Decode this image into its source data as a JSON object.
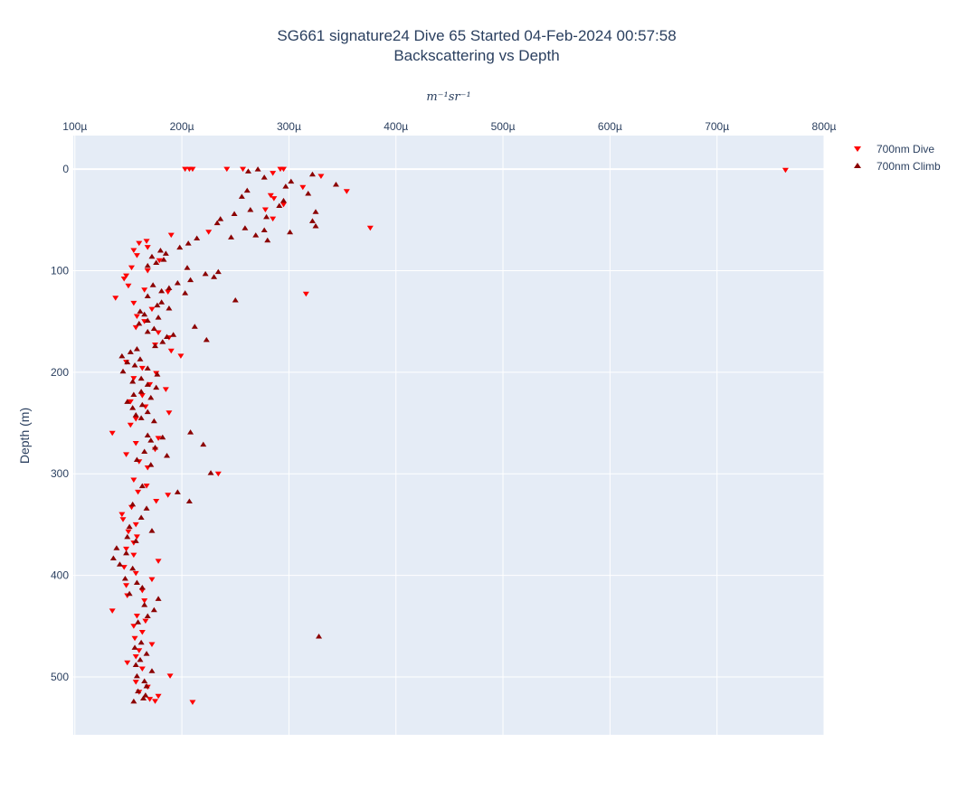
{
  "chart_data": {
    "type": "scatter",
    "title": "SG661 signature24 Dive 65 Started 04-Feb-2024 00:57:58",
    "subtitle": "Backscattering vs Depth",
    "xlabel": "m⁻¹sr⁻¹",
    "ylabel": "Depth (m)",
    "x_axis_position": "top",
    "y_reversed": true,
    "xlim": [
      9.85e-05,
      0.0008
    ],
    "ylim": [
      557,
      -33
    ],
    "x_ticks": [
      0.0001,
      0.0002,
      0.0003,
      0.0004,
      0.0005,
      0.0006,
      0.0007,
      0.0008
    ],
    "x_tick_labels": [
      "100µ",
      "200µ",
      "300µ",
      "400µ",
      "500µ",
      "600µ",
      "700µ",
      "800µ"
    ],
    "y_ticks": [
      0,
      100,
      200,
      300,
      400,
      500
    ],
    "y_tick_labels": [
      "0",
      "100",
      "200",
      "300",
      "400",
      "500"
    ],
    "grid": true,
    "legend_position": "top-right",
    "series": [
      {
        "name": "700nm Dive",
        "marker": "triangle-down",
        "color": "#ff0000",
        "points": [
          [
            0.000203,
            0
          ],
          [
            0.000207,
            0
          ],
          [
            0.00021,
            0
          ],
          [
            0.000242,
            0
          ],
          [
            0.000257,
            0
          ],
          [
            0.000292,
            0
          ],
          [
            0.000295,
            0
          ],
          [
            0.000764,
            1
          ],
          [
            0.000285,
            4
          ],
          [
            0.00033,
            7
          ],
          [
            0.000313,
            18
          ],
          [
            0.000354,
            22
          ],
          [
            0.000283,
            26
          ],
          [
            0.000286,
            29
          ],
          [
            0.000295,
            35
          ],
          [
            0.000278,
            40
          ],
          [
            0.000285,
            49
          ],
          [
            0.000376,
            58
          ],
          [
            0.000225,
            62
          ],
          [
            0.00019,
            65
          ],
          [
            0.000167,
            71
          ],
          [
            0.00016,
            73
          ],
          [
            0.000168,
            77
          ],
          [
            0.000155,
            80
          ],
          [
            0.000158,
            85
          ],
          [
            0.000179,
            90
          ],
          [
            0.000153,
            97
          ],
          [
            0.000168,
            100
          ],
          [
            0.000148,
            105
          ],
          [
            0.000146,
            108
          ],
          [
            0.00015,
            115
          ],
          [
            0.000165,
            119
          ],
          [
            0.000187,
            121
          ],
          [
            0.000316,
            123
          ],
          [
            0.000138,
            127
          ],
          [
            0.000155,
            132
          ],
          [
            0.000172,
            138
          ],
          [
            0.000158,
            145
          ],
          [
            0.000165,
            150
          ],
          [
            0.000157,
            156
          ],
          [
            0.000178,
            161
          ],
          [
            0.000188,
            166
          ],
          [
            0.000175,
            173
          ],
          [
            0.00019,
            179
          ],
          [
            0.000199,
            184
          ],
          [
            0.000148,
            190
          ],
          [
            0.000163,
            196
          ],
          [
            0.000176,
            201
          ],
          [
            0.000155,
            206
          ],
          [
            0.00017,
            212
          ],
          [
            0.000185,
            217
          ],
          [
            0.000163,
            223
          ],
          [
            0.000152,
            229
          ],
          [
            0.000166,
            234
          ],
          [
            0.000188,
            240
          ],
          [
            0.000157,
            246
          ],
          [
            0.000152,
            252
          ],
          [
            0.000135,
            260
          ],
          [
            0.000178,
            265
          ],
          [
            0.000157,
            270
          ],
          [
            0.000175,
            276
          ],
          [
            0.000148,
            281
          ],
          [
            0.00016,
            288
          ],
          [
            0.000168,
            294
          ],
          [
            0.000234,
            300
          ],
          [
            0.000155,
            306
          ],
          [
            0.000167,
            312
          ],
          [
            0.000159,
            318
          ],
          [
            0.000187,
            321
          ],
          [
            0.000176,
            327
          ],
          [
            0.000153,
            333
          ],
          [
            0.000144,
            340
          ],
          [
            0.000145,
            345
          ],
          [
            0.000157,
            350
          ],
          [
            0.00015,
            357
          ],
          [
            0.000158,
            362
          ],
          [
            0.000155,
            368
          ],
          [
            0.000148,
            374
          ],
          [
            0.000155,
            380
          ],
          [
            0.000178,
            386
          ],
          [
            0.000146,
            392
          ],
          [
            0.000157,
            398
          ],
          [
            0.000172,
            404
          ],
          [
            0.000148,
            410
          ],
          [
            0.000163,
            415
          ],
          [
            0.000149,
            420
          ],
          [
            0.000165,
            425
          ],
          [
            0.000135,
            435
          ],
          [
            0.000158,
            440
          ],
          [
            0.000166,
            445
          ],
          [
            0.000155,
            450
          ],
          [
            0.000163,
            456
          ],
          [
            0.000156,
            462
          ],
          [
            0.000172,
            468
          ],
          [
            0.00016,
            474
          ],
          [
            0.000157,
            480
          ],
          [
            0.000149,
            486
          ],
          [
            0.000163,
            492
          ],
          [
            0.000189,
            499
          ],
          [
            0.000157,
            505
          ],
          [
            0.000168,
            510
          ],
          [
            0.00016,
            515
          ],
          [
            0.000178,
            519
          ],
          [
            0.00017,
            522
          ],
          [
            0.000175,
            524
          ],
          [
            0.00021,
            525
          ]
        ]
      },
      {
        "name": "700nm Climb",
        "marker": "triangle-up",
        "color": "#8b0000",
        "points": [
          [
            0.000271,
            0
          ],
          [
            0.000262,
            2
          ],
          [
            0.000322,
            5
          ],
          [
            0.000277,
            8
          ],
          [
            0.000302,
            12
          ],
          [
            0.000344,
            15
          ],
          [
            0.000297,
            17
          ],
          [
            0.000261,
            21
          ],
          [
            0.000318,
            24
          ],
          [
            0.000256,
            27
          ],
          [
            0.000295,
            31
          ],
          [
            0.000291,
            36
          ],
          [
            0.000264,
            40
          ],
          [
            0.000325,
            42
          ],
          [
            0.000249,
            44
          ],
          [
            0.000279,
            47
          ],
          [
            0.000236,
            49
          ],
          [
            0.000322,
            51
          ],
          [
            0.000233,
            53
          ],
          [
            0.000325,
            56
          ],
          [
            0.000259,
            58
          ],
          [
            0.000277,
            60
          ],
          [
            0.000301,
            62
          ],
          [
            0.000269,
            65
          ],
          [
            0.000246,
            67
          ],
          [
            0.000214,
            68
          ],
          [
            0.00028,
            70
          ],
          [
            0.000206,
            73
          ],
          [
            0.000198,
            77
          ],
          [
            0.00018,
            80
          ],
          [
            0.000185,
            83
          ],
          [
            0.000172,
            86
          ],
          [
            0.000183,
            89
          ],
          [
            0.000176,
            92
          ],
          [
            0.000168,
            95
          ],
          [
            0.000205,
            97
          ],
          [
            0.000234,
            101
          ],
          [
            0.000222,
            103
          ],
          [
            0.00023,
            106
          ],
          [
            0.000208,
            109
          ],
          [
            0.000196,
            112
          ],
          [
            0.000173,
            114
          ],
          [
            0.000188,
            117
          ],
          [
            0.000181,
            120
          ],
          [
            0.000203,
            122
          ],
          [
            0.000168,
            125
          ],
          [
            0.00025,
            129
          ],
          [
            0.000181,
            131
          ],
          [
            0.000177,
            134
          ],
          [
            0.000188,
            137
          ],
          [
            0.000161,
            140
          ],
          [
            0.000165,
            143
          ],
          [
            0.000178,
            146
          ],
          [
            0.000168,
            149
          ],
          [
            0.00016,
            152
          ],
          [
            0.000212,
            155
          ],
          [
            0.000174,
            157
          ],
          [
            0.000168,
            160
          ],
          [
            0.000192,
            163
          ],
          [
            0.000186,
            165
          ],
          [
            0.000223,
            168
          ],
          [
            0.000182,
            170
          ],
          [
            0.000175,
            174
          ],
          [
            0.000158,
            177
          ],
          [
            0.000152,
            180
          ],
          [
            0.000144,
            184
          ],
          [
            0.000161,
            187
          ],
          [
            0.000149,
            190
          ],
          [
            0.000156,
            193
          ],
          [
            0.000168,
            196
          ],
          [
            0.000145,
            199
          ],
          [
            0.000177,
            202
          ],
          [
            0.000162,
            206
          ],
          [
            0.000154,
            209
          ],
          [
            0.000168,
            212
          ],
          [
            0.000176,
            215
          ],
          [
            0.000162,
            219
          ],
          [
            0.000155,
            222
          ],
          [
            0.000171,
            225
          ],
          [
            0.000149,
            229
          ],
          [
            0.000163,
            232
          ],
          [
            0.000154,
            235
          ],
          [
            0.000168,
            239
          ],
          [
            0.000157,
            242
          ],
          [
            0.000162,
            245
          ],
          [
            0.000174,
            248
          ],
          [
            0.000208,
            259
          ],
          [
            0.000168,
            262
          ],
          [
            0.000182,
            264
          ],
          [
            0.000171,
            267
          ],
          [
            0.00022,
            271
          ],
          [
            0.000175,
            274
          ],
          [
            0.000165,
            278
          ],
          [
            0.000186,
            282
          ],
          [
            0.000158,
            286
          ],
          [
            0.000171,
            291
          ],
          [
            0.000227,
            299
          ],
          [
            0.000196,
            318
          ],
          [
            0.000163,
            312
          ],
          [
            0.000207,
            327
          ],
          [
            0.000154,
            330
          ],
          [
            0.000167,
            334
          ],
          [
            0.000162,
            343
          ],
          [
            0.000151,
            352
          ],
          [
            0.000172,
            356
          ],
          [
            0.000149,
            362
          ],
          [
            0.000157,
            366
          ],
          [
            0.000139,
            373
          ],
          [
            0.000148,
            378
          ],
          [
            0.000136,
            383
          ],
          [
            0.000142,
            389
          ],
          [
            0.000154,
            393
          ],
          [
            0.000147,
            403
          ],
          [
            0.000158,
            407
          ],
          [
            0.000163,
            412
          ],
          [
            0.000151,
            418
          ],
          [
            0.000178,
            423
          ],
          [
            0.000165,
            429
          ],
          [
            0.000174,
            434
          ],
          [
            0.000168,
            440
          ],
          [
            0.000159,
            446
          ],
          [
            0.000328,
            460
          ],
          [
            0.000162,
            466
          ],
          [
            0.000156,
            471
          ],
          [
            0.000167,
            477
          ],
          [
            0.000161,
            483
          ],
          [
            0.000157,
            488
          ],
          [
            0.000172,
            494
          ],
          [
            0.000158,
            499
          ],
          [
            0.000165,
            504
          ],
          [
            0.000167,
            509
          ],
          [
            0.000159,
            514
          ],
          [
            0.000166,
            518
          ],
          [
            0.000164,
            521
          ],
          [
            0.000155,
            524
          ]
        ]
      }
    ]
  }
}
